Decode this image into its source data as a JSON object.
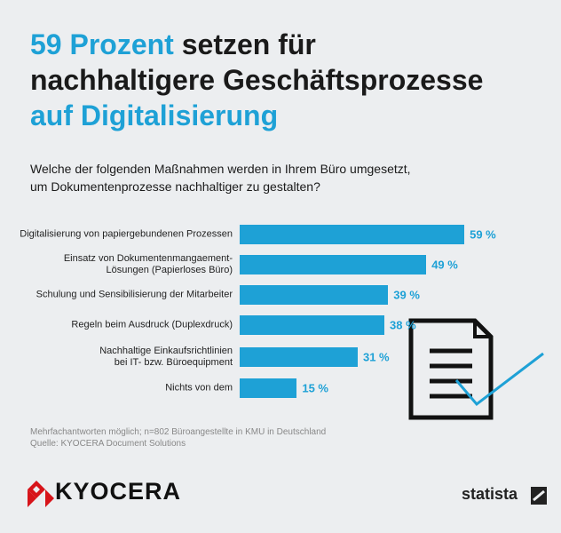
{
  "chart_data": {
    "type": "bar",
    "title": [
      "59 Prozent",
      "setzen für",
      "nachhaltigere Geschäftsprozesse",
      "auf Digitalisierung"
    ],
    "subtitle": "Welche der folgenden Maßnahmen werden in Ihrem Büro umgesetzt,\num Dokumentenprozesse nachhaltiger zu gestalten?",
    "categories": [
      "Digitalisierung von papiergebundenen Prozessen",
      "Einsatz von Dokumentenmangaement-\nLösungen (Papierloses Büro)",
      "Schulung und Sensibilisierung der Mitarbeiter",
      "Regeln beim Ausdruck (Duplexdruck)",
      "Nachhaltige Einkaufsrichtlinien\nbei IT- bzw. Büroequipment",
      "Nichts von dem"
    ],
    "values": [
      59,
      49,
      39,
      38,
      31,
      15
    ],
    "value_labels": [
      "59 %",
      "49 %",
      "39 %",
      "38 %",
      "31 %",
      "15 %"
    ],
    "color": "#1ea1d6",
    "notes": [
      "Mehrfachantworten möglich; n=802 Büroangestellte in KMU in Deutschland",
      "Quelle: KYOCERA Document Solutions"
    ],
    "logo": "KYOCERA",
    "brand": "statista"
  }
}
